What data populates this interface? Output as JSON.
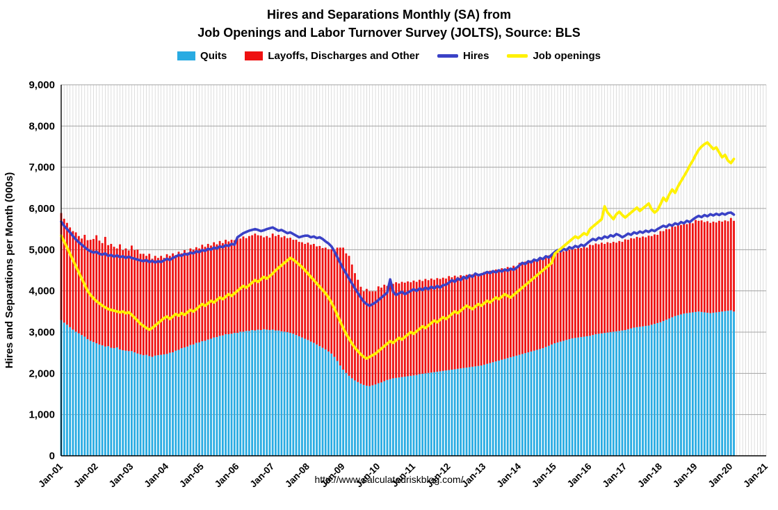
{
  "title": {
    "line1": "Hires and Separations Monthly (SA) from",
    "line2": "Job Openings and Labor Turnover Survey (JOLTS), Source: BLS"
  },
  "footer": {
    "url": "http://www.calculatedriskblog.com/"
  },
  "chart_data": {
    "type": "combo-stacked-bar-line",
    "title": "Hires and Separations Monthly (SA) from Job Openings and Labor Turnover Survey (JOLTS), Source: BLS",
    "ylabel": "Hires and Separations per Month (000s)",
    "xlabel": "",
    "ylim": [
      0,
      9000
    ],
    "y_tick_step": 1000,
    "y_tick_labels": [
      "0",
      "1,000",
      "2,000",
      "3,000",
      "4,000",
      "5,000",
      "6,000",
      "7,000",
      "8,000",
      "9,000"
    ],
    "x_start_month": "Jan-2001",
    "x_end_month": "Feb-2020",
    "x_axis_extends_to": "Jan-2021",
    "x_total_months": 241,
    "months_per_tick": 12,
    "x_tick_labels": [
      "Jan-01",
      "Jan-02",
      "Jan-03",
      "Jan-04",
      "Jan-05",
      "Jan-06",
      "Jan-07",
      "Jan-08",
      "Jan-09",
      "Jan-10",
      "Jan-11",
      "Jan-12",
      "Jan-13",
      "Jan-14",
      "Jan-15",
      "Jan-16",
      "Jan-17",
      "Jan-18",
      "Jan-19",
      "Jan-20",
      "Jan-21"
    ],
    "grid": {
      "vertical": "monthly",
      "horizontal": "every-1000",
      "v_color": "#cfcfcf",
      "h_color": "#a3a3a3"
    },
    "legend_position": "top",
    "series": [
      {
        "name": "Quits",
        "type": "bar",
        "stack": "separations",
        "color": "#29ABE2",
        "values": [
          3290,
          3230,
          3180,
          3120,
          3060,
          3010,
          2970,
          2930,
          2890,
          2830,
          2790,
          2760,
          2730,
          2700,
          2680,
          2650,
          2660,
          2620,
          2610,
          2630,
          2580,
          2560,
          2550,
          2540,
          2540,
          2510,
          2480,
          2460,
          2440,
          2450,
          2420,
          2400,
          2430,
          2440,
          2450,
          2460,
          2470,
          2500,
          2510,
          2550,
          2570,
          2610,
          2630,
          2650,
          2690,
          2700,
          2740,
          2750,
          2780,
          2790,
          2820,
          2840,
          2870,
          2880,
          2910,
          2920,
          2950,
          2950,
          2960,
          2980,
          2980,
          3010,
          3010,
          3030,
          3030,
          3050,
          3040,
          3060,
          3050,
          3070,
          3060,
          3050,
          3060,
          3040,
          3040,
          3020,
          3010,
          3000,
          2980,
          2960,
          2930,
          2900,
          2870,
          2840,
          2810,
          2770,
          2740,
          2700,
          2660,
          2620,
          2580,
          2530,
          2480,
          2400,
          2300,
          2190,
          2090,
          2010,
          1940,
          1880,
          1830,
          1790,
          1750,
          1720,
          1700,
          1690,
          1710,
          1730,
          1760,
          1780,
          1810,
          1840,
          1860,
          1880,
          1890,
          1900,
          1910,
          1920,
          1930,
          1940,
          1950,
          1960,
          1980,
          1990,
          2000,
          2010,
          2020,
          2030,
          2040,
          2050,
          2060,
          2070,
          2080,
          2090,
          2100,
          2110,
          2120,
          2130,
          2140,
          2150,
          2160,
          2170,
          2180,
          2190,
          2210,
          2230,
          2250,
          2270,
          2290,
          2310,
          2330,
          2350,
          2370,
          2390,
          2410,
          2430,
          2450,
          2470,
          2490,
          2510,
          2530,
          2550,
          2570,
          2590,
          2610,
          2640,
          2670,
          2700,
          2730,
          2750,
          2770,
          2790,
          2810,
          2830,
          2850,
          2860,
          2870,
          2880,
          2890,
          2900,
          2910,
          2930,
          2950,
          2960,
          2970,
          2980,
          2990,
          3000,
          3010,
          3020,
          3030,
          3040,
          3050,
          3070,
          3090,
          3110,
          3120,
          3130,
          3140,
          3150,
          3160,
          3180,
          3200,
          3220,
          3240,
          3270,
          3300,
          3330,
          3360,
          3390,
          3410,
          3430,
          3450,
          3460,
          3470,
          3480,
          3490,
          3500,
          3490,
          3480,
          3470,
          3460,
          3470,
          3480,
          3490,
          3500,
          3510,
          3520,
          3530,
          3500
        ]
      },
      {
        "name": "Layoffs, Discharges and Other",
        "type": "bar",
        "stack": "separations",
        "color": "#EE1111",
        "values": [
          2600,
          2520,
          2470,
          2420,
          2390,
          2410,
          2360,
          2340,
          2470,
          2400,
          2450,
          2500,
          2620,
          2520,
          2480,
          2660,
          2450,
          2520,
          2460,
          2400,
          2550,
          2430,
          2480,
          2440,
          2560,
          2480,
          2520,
          2440,
          2460,
          2400,
          2480,
          2380,
          2420,
          2360,
          2400,
          2340,
          2420,
          2350,
          2400,
          2320,
          2380,
          2300,
          2360,
          2280,
          2340,
          2300,
          2320,
          2280,
          2340,
          2280,
          2320,
          2260,
          2310,
          2250,
          2300,
          2240,
          2290,
          2250,
          2280,
          2250,
          2320,
          2260,
          2310,
          2250,
          2300,
          2300,
          2350,
          2290,
          2290,
          2230,
          2270,
          2240,
          2330,
          2290,
          2320,
          2280,
          2320,
          2280,
          2310,
          2280,
          2310,
          2290,
          2310,
          2300,
          2360,
          2350,
          2400,
          2380,
          2430,
          2420,
          2470,
          2480,
          2530,
          2600,
          2750,
          2860,
          2960,
          2900,
          2910,
          2760,
          2600,
          2480,
          2350,
          2270,
          2350,
          2300,
          2280,
          2260,
          2350,
          2300,
          2340,
          2280,
          2330,
          2290,
          2320,
          2280,
          2310,
          2280,
          2300,
          2270,
          2300,
          2260,
          2290,
          2250,
          2290,
          2250,
          2280,
          2240,
          2270,
          2240,
          2260,
          2230,
          2280,
          2240,
          2270,
          2230,
          2260,
          2230,
          2250,
          2220,
          2240,
          2210,
          2230,
          2200,
          2250,
          2210,
          2240,
          2200,
          2230,
          2190,
          2220,
          2180,
          2210,
          2170,
          2200,
          2160,
          2230,
          2190,
          2220,
          2180,
          2210,
          2170,
          2200,
          2170,
          2190,
          2160,
          2190,
          2160,
          2220,
          2180,
          2210,
          2170,
          2200,
          2170,
          2190,
          2160,
          2190,
          2160,
          2180,
          2150,
          2210,
          2180,
          2200,
          2170,
          2200,
          2160,
          2190,
          2160,
          2180,
          2150,
          2180,
          2150,
          2200,
          2170,
          2190,
          2160,
          2190,
          2160,
          2180,
          2150,
          2180,
          2150,
          2170,
          2140,
          2210,
          2180,
          2200,
          2170,
          2200,
          2170,
          2190,
          2170,
          2190,
          2160,
          2190,
          2160,
          2230,
          2200,
          2220,
          2190,
          2220,
          2190,
          2210,
          2180,
          2210,
          2180,
          2200,
          2170,
          2240,
          2200
        ]
      },
      {
        "name": "Hires",
        "type": "line",
        "color": "#3A41C6",
        "values": [
          5680,
          5580,
          5500,
          5420,
          5330,
          5250,
          5180,
          5120,
          5060,
          5000,
          4960,
          4930,
          4950,
          4900,
          4880,
          4910,
          4850,
          4870,
          4830,
          4860,
          4820,
          4840,
          4800,
          4830,
          4800,
          4780,
          4760,
          4740,
          4720,
          4750,
          4700,
          4730,
          4690,
          4720,
          4700,
          4740,
          4780,
          4750,
          4800,
          4830,
          4870,
          4850,
          4900,
          4880,
          4930,
          4910,
          4960,
          4940,
          4990,
          4970,
          5020,
          5000,
          5050,
          5030,
          5080,
          5060,
          5110,
          5090,
          5140,
          5120,
          5300,
          5350,
          5400,
          5430,
          5460,
          5480,
          5500,
          5480,
          5450,
          5470,
          5500,
          5520,
          5540,
          5500,
          5460,
          5480,
          5440,
          5400,
          5420,
          5380,
          5340,
          5300,
          5320,
          5340,
          5340,
          5300,
          5320,
          5280,
          5300,
          5260,
          5200,
          5150,
          5080,
          4960,
          4820,
          4680,
          4540,
          4420,
          4300,
          4180,
          4060,
          3950,
          3840,
          3740,
          3680,
          3640,
          3680,
          3720,
          3780,
          3840,
          3900,
          3960,
          4280,
          3980,
          3900,
          3940,
          3980,
          3920,
          3960,
          4000,
          4040,
          4000,
          4060,
          4020,
          4080,
          4040,
          4100,
          4060,
          4120,
          4080,
          4140,
          4150,
          4200,
          4260,
          4220,
          4300,
          4260,
          4340,
          4300,
          4380,
          4340,
          4420,
          4380,
          4400,
          4420,
          4460,
          4430,
          4480,
          4450,
          4500,
          4470,
          4520,
          4490,
          4540,
          4510,
          4560,
          4620,
          4680,
          4650,
          4720,
          4690,
          4760,
          4730,
          4800,
          4770,
          4840,
          4810,
          4880,
          4940,
          4990,
          4960,
          5020,
          4990,
          5060,
          5030,
          5090,
          5060,
          5120,
          5090,
          5150,
          5210,
          5260,
          5230,
          5290,
          5260,
          5320,
          5290,
          5350,
          5320,
          5380,
          5350,
          5300,
          5340,
          5390,
          5360,
          5420,
          5390,
          5440,
          5410,
          5460,
          5430,
          5480,
          5450,
          5500,
          5540,
          5580,
          5550,
          5610,
          5580,
          5640,
          5610,
          5670,
          5640,
          5700,
          5670,
          5730,
          5780,
          5820,
          5790,
          5840,
          5810,
          5860,
          5830,
          5870,
          5840,
          5880,
          5850,
          5890,
          5900,
          5850
        ]
      },
      {
        "name": "Job openings",
        "type": "line",
        "color": "#FFF100",
        "values": [
          5340,
          5200,
          5050,
          4900,
          4750,
          4600,
          4450,
          4300,
          4150,
          4000,
          3900,
          3820,
          3750,
          3700,
          3640,
          3600,
          3560,
          3540,
          3520,
          3500,
          3480,
          3500,
          3460,
          3480,
          3420,
          3350,
          3280,
          3200,
          3150,
          3100,
          3060,
          3100,
          3160,
          3220,
          3280,
          3340,
          3380,
          3320,
          3380,
          3440,
          3400,
          3460,
          3420,
          3480,
          3540,
          3500,
          3560,
          3620,
          3680,
          3640,
          3700,
          3760,
          3720,
          3780,
          3840,
          3800,
          3860,
          3920,
          3880,
          3940,
          4000,
          4060,
          4120,
          4080,
          4140,
          4200,
          4260,
          4220,
          4280,
          4340,
          4300,
          4360,
          4420,
          4500,
          4560,
          4620,
          4680,
          4740,
          4800,
          4760,
          4700,
          4640,
          4580,
          4500,
          4420,
          4340,
          4260,
          4180,
          4100,
          4020,
          3940,
          3840,
          3720,
          3580,
          3420,
          3260,
          3100,
          2960,
          2840,
          2720,
          2620,
          2540,
          2460,
          2400,
          2360,
          2400,
          2440,
          2480,
          2540,
          2600,
          2660,
          2720,
          2780,
          2740,
          2800,
          2860,
          2820,
          2880,
          2940,
          3000,
          2960,
          3020,
          3080,
          3140,
          3100,
          3160,
          3220,
          3280,
          3240,
          3300,
          3360,
          3320,
          3380,
          3440,
          3500,
          3460,
          3520,
          3580,
          3640,
          3600,
          3560,
          3620,
          3680,
          3640,
          3700,
          3760,
          3720,
          3780,
          3840,
          3800,
          3860,
          3920,
          3880,
          3840,
          3900,
          3960,
          4020,
          4080,
          4140,
          4200,
          4260,
          4320,
          4380,
          4440,
          4500,
          4560,
          4620,
          4680,
          4900,
          4960,
          5020,
          5080,
          5140,
          5200,
          5260,
          5320,
          5280,
          5340,
          5400,
          5360,
          5500,
          5560,
          5620,
          5680,
          5740,
          6050,
          5900,
          5820,
          5740,
          5860,
          5920,
          5840,
          5780,
          5840,
          5900,
          5960,
          6020,
          5940,
          6000,
          6060,
          6120,
          5980,
          5900,
          5960,
          6100,
          6260,
          6180,
          6340,
          6460,
          6380,
          6540,
          6660,
          6780,
          6900,
          7040,
          7160,
          7300,
          7420,
          7500,
          7560,
          7600,
          7520,
          7440,
          7480,
          7360,
          7240,
          7300,
          7160,
          7100,
          7200
        ]
      }
    ]
  }
}
